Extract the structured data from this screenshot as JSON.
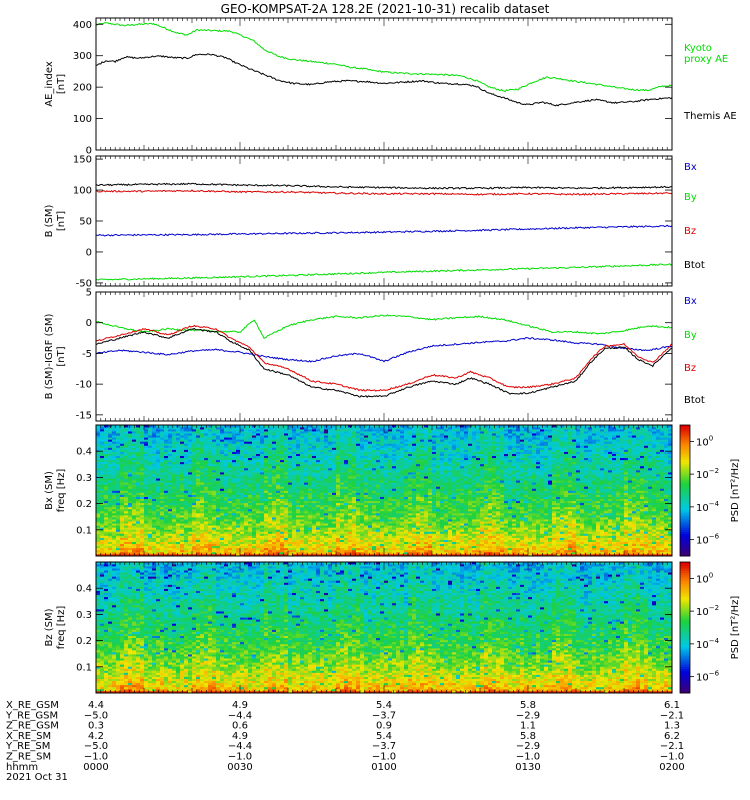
{
  "title": "GEO-KOMPSAT-2A 128.2E (2021-10-31) recalib dataset",
  "colors": {
    "black": "#000000",
    "green": "#00dd00",
    "blue": "#0000cc",
    "red": "#dd0000"
  },
  "chart_data": [
    {
      "id": "ae",
      "type": "line",
      "ylabel": "AE_index",
      "yunit": "[nT]",
      "ylim": [
        0,
        420
      ],
      "yticks": [
        0,
        100,
        200,
        300,
        400
      ],
      "xlim_min": [
        0,
        120
      ],
      "series": [
        {
          "name": "Kyoto proxy AE",
          "legend_lines": [
            "Kyoto",
            "proxy AE"
          ],
          "color": "#00dd00",
          "x": [
            0,
            2,
            4,
            6,
            9,
            12,
            14,
            17,
            19,
            21,
            24,
            28,
            31,
            33,
            35,
            38,
            41,
            44,
            47,
            50,
            53,
            56,
            58,
            61,
            64,
            68,
            72,
            76,
            79,
            82,
            85,
            88,
            91,
            94,
            97,
            100,
            103,
            106,
            109,
            112,
            115,
            118,
            120
          ],
          "y": [
            398,
            404,
            400,
            396,
            400,
            402,
            390,
            372,
            366,
            382,
            380,
            378,
            360,
            346,
            320,
            298,
            288,
            283,
            278,
            273,
            263,
            258,
            252,
            247,
            244,
            242,
            240,
            236,
            222,
            200,
            188,
            194,
            216,
            232,
            226,
            218,
            212,
            205,
            197,
            192,
            190,
            203,
            205
          ]
        },
        {
          "name": "Themis AE",
          "legend_lines": [
            "Themis AE"
          ],
          "color": "#000000",
          "x": [
            0,
            2,
            4,
            6,
            9,
            12,
            14,
            16,
            19,
            21,
            24,
            27,
            29,
            32,
            35,
            38,
            41,
            45,
            48,
            52,
            56,
            60,
            64,
            68,
            72,
            76,
            79,
            82,
            85,
            88,
            90,
            93,
            96,
            100,
            104,
            108,
            112,
            116,
            120
          ],
          "y": [
            268,
            284,
            282,
            296,
            292,
            298,
            298,
            294,
            292,
            304,
            304,
            294,
            278,
            258,
            240,
            222,
            212,
            208,
            216,
            220,
            218,
            212,
            216,
            220,
            212,
            210,
            204,
            180,
            166,
            150,
            144,
            152,
            142,
            152,
            160,
            150,
            154,
            162,
            166
          ]
        }
      ]
    },
    {
      "id": "b",
      "type": "line",
      "ylabel": "B (SM)",
      "yunit": "[nT]",
      "ylim": [
        -55,
        155
      ],
      "yticks": [
        -50,
        0,
        50,
        100,
        150
      ],
      "xlim_min": [
        0,
        120
      ],
      "series": [
        {
          "name": "Bx",
          "color": "#0000cc",
          "x": [
            0,
            20,
            40,
            60,
            80,
            100,
            120
          ],
          "y": [
            27,
            28,
            30,
            32,
            35,
            39,
            42
          ]
        },
        {
          "name": "By",
          "color": "#00dd00",
          "x": [
            0,
            20,
            40,
            60,
            80,
            100,
            120
          ],
          "y": [
            -45,
            -42,
            -38,
            -33,
            -29,
            -25,
            -20
          ]
        },
        {
          "name": "Bz",
          "color": "#dd0000",
          "x": [
            0,
            10,
            20,
            30,
            40,
            50,
            60,
            70,
            80,
            90,
            100,
            110,
            120
          ],
          "y": [
            98,
            98,
            99,
            97,
            97,
            95,
            94,
            94,
            93,
            94,
            93,
            94,
            95
          ]
        },
        {
          "name": "Btot",
          "color": "#000000",
          "x": [
            0,
            10,
            20,
            30,
            40,
            50,
            60,
            70,
            80,
            90,
            100,
            110,
            120
          ],
          "y": [
            108,
            109,
            110,
            108,
            107,
            105,
            104,
            103,
            103,
            104,
            103,
            104,
            105
          ]
        }
      ]
    },
    {
      "id": "db",
      "type": "line",
      "ylabel": "B (SM)-IGRF (SM)",
      "yunit": "[nT]",
      "ylim": [
        -16,
        5
      ],
      "yticks": [
        -15,
        -10,
        -5,
        0,
        5
      ],
      "xlim_min": [
        0,
        120
      ],
      "series": [
        {
          "name": "Bx",
          "color": "#0000cc",
          "x": [
            0,
            5,
            10,
            15,
            20,
            25,
            30,
            35,
            40,
            45,
            50,
            55,
            60,
            65,
            70,
            75,
            80,
            85,
            90,
            95,
            100,
            105,
            110,
            115,
            120
          ],
          "y": [
            -5,
            -4.5,
            -4.8,
            -5.2,
            -4.6,
            -4.4,
            -4.8,
            -5.5,
            -6,
            -6.3,
            -5.4,
            -5,
            -6.3,
            -4.8,
            -3.8,
            -3.5,
            -3.2,
            -3,
            -2.5,
            -2.8,
            -3.3,
            -3.5,
            -4.2,
            -4.5,
            -3.8
          ]
        },
        {
          "name": "By",
          "color": "#00dd00",
          "x": [
            0,
            5,
            10,
            15,
            20,
            25,
            30,
            33,
            35,
            40,
            45,
            50,
            55,
            60,
            65,
            70,
            75,
            80,
            85,
            90,
            95,
            100,
            105,
            110,
            115,
            120
          ],
          "y": [
            0.2,
            -0.8,
            -1.5,
            -1,
            -1.2,
            -1.4,
            -1.5,
            0.5,
            -2.5,
            -0.5,
            0.5,
            1,
            0.8,
            1.2,
            1,
            0.5,
            0.8,
            1,
            0.5,
            -0.5,
            -1.5,
            -1.5,
            -1.8,
            -1.3,
            -0.5,
            -0.8
          ]
        },
        {
          "name": "Bz",
          "color": "#dd0000",
          "x": [
            0,
            5,
            10,
            15,
            20,
            25,
            28,
            32,
            35,
            40,
            45,
            50,
            55,
            60,
            65,
            70,
            75,
            78,
            82,
            86,
            90,
            95,
            100,
            103,
            106,
            110,
            113,
            116,
            120
          ],
          "y": [
            -3,
            -2,
            -1,
            -2,
            -0.5,
            -1,
            -2.5,
            -4,
            -6.5,
            -7.5,
            -9.5,
            -10,
            -11,
            -11,
            -10,
            -8.5,
            -9,
            -8,
            -9,
            -10.5,
            -10.5,
            -10,
            -9,
            -6,
            -3.8,
            -3.5,
            -5.5,
            -6.5,
            -3.5
          ]
        },
        {
          "name": "Btot",
          "color": "#000000",
          "x": [
            0,
            5,
            10,
            15,
            20,
            25,
            28,
            32,
            35,
            40,
            45,
            50,
            55,
            60,
            65,
            70,
            75,
            78,
            82,
            86,
            90,
            95,
            100,
            103,
            106,
            110,
            113,
            116,
            120
          ],
          "y": [
            -3.5,
            -2.5,
            -1.5,
            -2.5,
            -1,
            -1.5,
            -3,
            -4.5,
            -7.5,
            -8.5,
            -10.5,
            -11,
            -12,
            -12,
            -10.5,
            -9.5,
            -10,
            -9,
            -10,
            -11.5,
            -11.5,
            -10.5,
            -9.5,
            -6.5,
            -4.2,
            -4,
            -6,
            -7,
            -4
          ]
        }
      ]
    },
    {
      "id": "spec_bx",
      "type": "heatmap",
      "ylabel": "Bx (SM)",
      "ylabel2": "freq [Hz]",
      "ylim": [
        0,
        0.5
      ],
      "yticks": [
        0.1,
        0.2,
        0.3,
        0.4
      ],
      "colorbar": {
        "label": "PSD [nT²/Hz]",
        "ticks": [
          "10",
          "10",
          "10",
          "10"
        ],
        "exponents": [
          "0",
          "−2",
          "−4",
          "−6"
        ],
        "log_range": [
          -7,
          1
        ]
      }
    },
    {
      "id": "spec_bz",
      "type": "heatmap",
      "ylabel": "Bz (SM)",
      "ylabel2": "freq [Hz]",
      "ylim": [
        0,
        0.5
      ],
      "yticks": [
        0.1,
        0.2,
        0.3,
        0.4
      ],
      "colorbar": {
        "label": "PSD [nT²/Hz]",
        "ticks": [
          "10",
          "10",
          "10",
          "10"
        ],
        "exponents": [
          "0",
          "−2",
          "−4",
          "−6"
        ],
        "log_range": [
          -7,
          1
        ]
      }
    }
  ],
  "ephemeris": {
    "labels": [
      "X_RE_GSM",
      "Y_RE_GSM",
      "Z_RE_GSM",
      "X_RE_SM",
      "Y_RE_SM",
      "Z_RE_SM",
      "hhmm"
    ],
    "date": "2021 Oct 31",
    "columns": [
      {
        "minute": 0,
        "values": [
          "4.4",
          "−5.0",
          "0.3",
          "4.2",
          "−5.0",
          "−1.0",
          "0000"
        ]
      },
      {
        "minute": 30,
        "values": [
          "4.9",
          "−4.4",
          "0.6",
          "4.9",
          "−4.4",
          "−1.0",
          "0030"
        ]
      },
      {
        "minute": 60,
        "values": [
          "5.4",
          "−3.7",
          "0.9",
          "5.4",
          "−3.7",
          "−1.0",
          "0100"
        ]
      },
      {
        "minute": 90,
        "values": [
          "5.8",
          "−2.9",
          "1.1",
          "5.8",
          "−2.9",
          "−1.0",
          "0130"
        ]
      },
      {
        "minute": 120,
        "values": [
          "6.1",
          "−2.1",
          "1.3",
          "6.2",
          "−2.1",
          "−1.0",
          "0200"
        ]
      }
    ]
  }
}
